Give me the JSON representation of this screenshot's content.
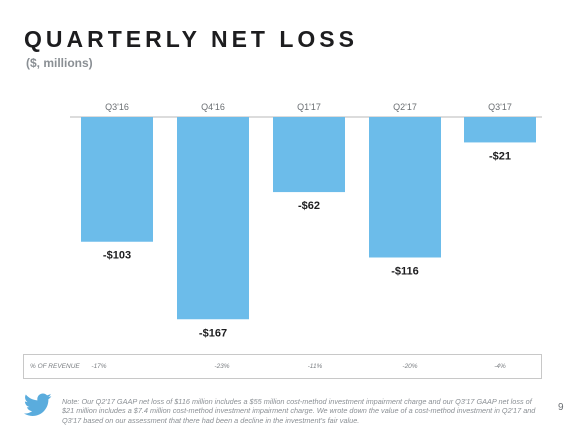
{
  "header": {
    "title": "QUARTERLY NET LOSS",
    "subtitle": "($, millions)"
  },
  "chart_data": {
    "type": "bar",
    "categories": [
      "Q3'16",
      "Q4'16",
      "Q1'17",
      "Q2'17",
      "Q3'17"
    ],
    "values": [
      -103,
      -167,
      -62,
      -116,
      -21
    ],
    "value_labels": [
      "-$103",
      "-$167",
      "-$62",
      "-$116",
      "-$21"
    ],
    "ylim": [
      -180,
      0
    ],
    "bar_color": "#6cbcea",
    "axis_color": "#b8b8b8",
    "grid": false,
    "title": "QUARTERLY NET LOSS",
    "ylabel": "($, millions)"
  },
  "revenue_row": {
    "label": "% OF REVENUE",
    "values": [
      "-17%",
      "-23%",
      "-11%",
      "-20%",
      "-4%"
    ]
  },
  "footer": {
    "icon": "twitter-bird-icon",
    "icon_color": "#5aacdd",
    "note": "Note: Our Q2'17 GAAP net loss of $116 million includes a $55 million cost-method investment impairment charge and our Q3'17 GAAP net loss of $21 million includes a $7.4 million cost-method investment impairment charge.  We wrote down the value of a cost-method investment in Q2'17 and Q3'17 based on our assessment that there had been a decline in the investment's fair value.",
    "page_number": "9"
  }
}
